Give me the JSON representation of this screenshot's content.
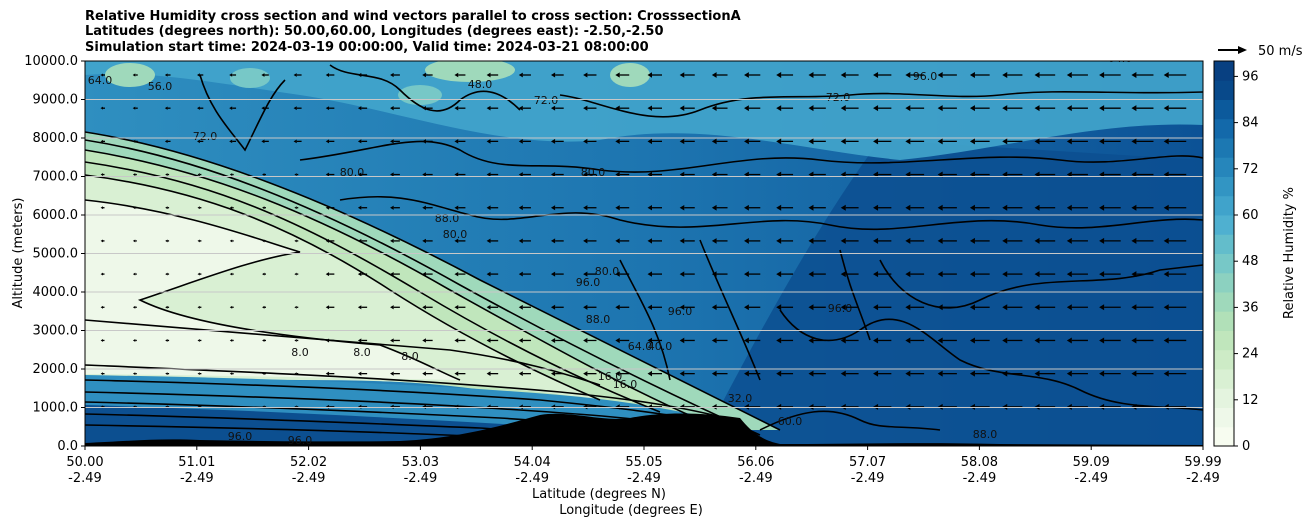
{
  "chart_data": {
    "type": "heatmap",
    "title_lines": [
      "Relative Humidity cross section and wind vectors parallel to cross section: CrosssectionA",
      "Latitudes (degrees north): 50.00,60.00, Longitudes (degrees east): -2.50,-2.50",
      "Simulation start time: 2024-03-19 00:00:00, Valid time: 2024-03-21 08:00:00"
    ],
    "ylabel": "Altitude (meters)",
    "xlabel_lat": "Latitude (degrees N)",
    "xlabel_lon": "Longitude (degrees E)",
    "ylim": [
      0,
      10000
    ],
    "y_ticks": [
      "0.0",
      "1000.0",
      "2000.0",
      "3000.0",
      "4000.0",
      "5000.0",
      "6000.0",
      "7000.0",
      "8000.0",
      "9000.0",
      "10000.0"
    ],
    "x_ticks": [
      {
        "lat": "50.00",
        "lon": "-2.49"
      },
      {
        "lat": "51.01",
        "lon": "-2.49"
      },
      {
        "lat": "52.02",
        "lon": "-2.49"
      },
      {
        "lat": "53.03",
        "lon": "-2.49"
      },
      {
        "lat": "54.04",
        "lon": "-2.49"
      },
      {
        "lat": "55.05",
        "lon": "-2.49"
      },
      {
        "lat": "56.06",
        "lon": "-2.49"
      },
      {
        "lat": "57.07",
        "lon": "-2.49"
      },
      {
        "lat": "58.08",
        "lon": "-2.49"
      },
      {
        "lat": "59.09",
        "lon": "-2.49"
      },
      {
        "lat": "59.99",
        "lon": "-2.49"
      }
    ],
    "grid": "horizontal",
    "colorbar": {
      "label": "Relative Humidity %",
      "range": [
        0,
        100
      ],
      "ticks": [
        "0",
        "12",
        "24",
        "36",
        "48",
        "60",
        "72",
        "84",
        "96"
      ],
      "colors": [
        "#f7fcf0",
        "#eef8e9",
        "#e4f4df",
        "#d9f0d3",
        "#cdebc6",
        "#c0e6bc",
        "#b1e0b8",
        "#9fd9bb",
        "#8cd1c0",
        "#77c8c7",
        "#63bdcb",
        "#4fb0d0",
        "#40a3cb",
        "#3295c3",
        "#2686bb",
        "#1c78b2",
        "#1369aa",
        "#0c5a9c",
        "#08498a",
        "#084081"
      ]
    },
    "quiver_key": "50 m/s",
    "contour_labels": [
      "8.0",
      "16.0",
      "40.0",
      "48.0",
      "56.0",
      "64.0",
      "72.0",
      "80.0",
      "88.0",
      "96.0"
    ]
  }
}
